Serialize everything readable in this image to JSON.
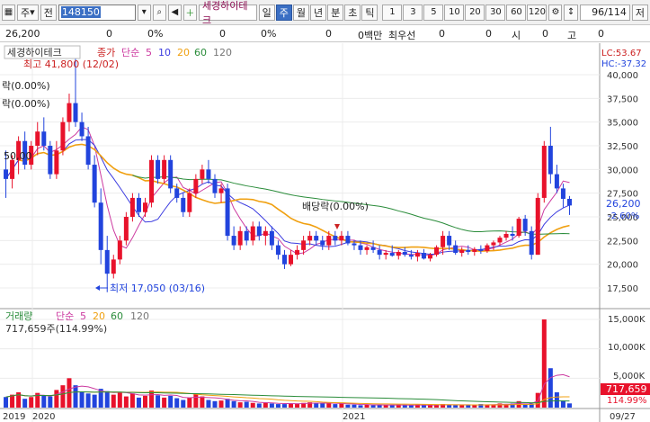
{
  "toolbar": {
    "market_label": "주",
    "market_tag": "전",
    "code": "148150",
    "stock_name": "세경하이테크",
    "period_buttons": [
      "일",
      "주",
      "월",
      "년",
      "분",
      "초",
      "틱"
    ],
    "active_period": "주",
    "interval_buttons": [
      "1",
      "3",
      "5",
      "10",
      "20",
      "30",
      "60",
      "120"
    ],
    "count": "96",
    "count_total": "/114",
    "right_label": "저"
  },
  "info_bar": {
    "price": "26,200",
    "v1": "0",
    "v2": "0%",
    "v3": "0",
    "v4": "0%",
    "v5": "0",
    "v6": "0백만",
    "market_label": "최우선",
    "v7": "0",
    "v8": "0",
    "open_label": "시",
    "v9": "0",
    "high_label": "고",
    "v10": "0"
  },
  "price_legend": {
    "name": "세경하이테크",
    "close": "종가",
    "method": "단순",
    "ma": [
      "5",
      "10",
      "20",
      "60",
      "120"
    ]
  },
  "vol_legend": {
    "name": "거래량",
    "method": "단순",
    "ma": [
      "5",
      "20",
      "60",
      "120"
    ],
    "value": "717,659주(114.99%)"
  },
  "annotations": {
    "high": "최고 41,800 (12/02)",
    "low": "최저 17,050 (03/16)",
    "div1": "배당락(0.00%)",
    "div2": "락(0.00%)",
    "div3": "락(0.00%)",
    "level": "50,00"
  },
  "right_axis": {
    "lc": "LC:53.67",
    "hc": "HC:-37.32",
    "price_ticks": [
      "40,000",
      "37,500",
      "35,000",
      "32,500",
      "30,000",
      "27,500",
      "25,000",
      "22,500",
      "20,000",
      "17,500"
    ],
    "current_price": "26,200",
    "current_pct": "-2.60%",
    "vol_ticks": [
      "15,000K",
      "10,000K",
      "5,000K"
    ],
    "current_vol": "717,659",
    "current_vol_pct": "114.99%"
  },
  "x_labels": [
    "2019",
    "2020",
    "2021",
    "09/27"
  ],
  "colors": {
    "up": "#e8122b",
    "down": "#2244dd",
    "ma5": "#cc3aa0",
    "ma10": "#3b3be0",
    "ma20": "#f0a010",
    "ma60": "#2a8c3a",
    "ma120": "#7a7a7a"
  },
  "chart_data": {
    "type": "candlestick",
    "panels": [
      "price",
      "volume"
    ],
    "price_ylim": [
      15000,
      42000
    ],
    "volume_ylim": [
      0,
      16000000
    ],
    "x_start": "2019",
    "x_end": "09/27",
    "candles": [
      [
        30000,
        32000,
        27000,
        29000
      ],
      [
        29000,
        31500,
        28000,
        31000
      ],
      [
        31000,
        33500,
        29500,
        33000
      ],
      [
        33000,
        34000,
        30000,
        30500
      ],
      [
        30500,
        33000,
        30000,
        32500
      ],
      [
        32500,
        35000,
        31500,
        34000
      ],
      [
        34000,
        35500,
        32000,
        32500
      ],
      [
        32500,
        33000,
        29000,
        29500
      ],
      [
        29500,
        33000,
        29000,
        32000
      ],
      [
        32000,
        35500,
        31500,
        35000
      ],
      [
        35000,
        38000,
        34000,
        37000
      ],
      [
        37000,
        41800,
        34500,
        35000
      ],
      [
        35000,
        36000,
        33000,
        33500
      ],
      [
        33500,
        34500,
        30000,
        30500
      ],
      [
        30500,
        31500,
        26000,
        26500
      ],
      [
        26500,
        28000,
        20000,
        21500
      ],
      [
        21500,
        23000,
        17050,
        19000
      ],
      [
        19000,
        21000,
        18500,
        20500
      ],
      [
        20500,
        23000,
        20000,
        22500
      ],
      [
        22500,
        25500,
        22000,
        25000
      ],
      [
        25000,
        27500,
        24500,
        27000
      ],
      [
        27000,
        27500,
        25000,
        25500
      ],
      [
        25500,
        27000,
        25000,
        26500
      ],
      [
        26500,
        31500,
        26000,
        31000
      ],
      [
        31000,
        31500,
        28500,
        29000
      ],
      [
        29000,
        31500,
        28500,
        31000
      ],
      [
        31000,
        31500,
        27500,
        28000
      ],
      [
        28000,
        28500,
        26500,
        27000
      ],
      [
        27000,
        27500,
        25000,
        25500
      ],
      [
        25500,
        28000,
        25000,
        27500
      ],
      [
        27500,
        29500,
        27000,
        29000
      ],
      [
        29000,
        30500,
        28500,
        30000
      ],
      [
        30000,
        31000,
        28500,
        29000
      ],
      [
        29000,
        29500,
        27000,
        27500
      ],
      [
        27500,
        28500,
        26500,
        28000
      ],
      [
        28000,
        28500,
        22500,
        23000
      ],
      [
        23000,
        24000,
        21500,
        22000
      ],
      [
        22000,
        24000,
        21500,
        23500
      ],
      [
        23500,
        24000,
        22000,
        22500
      ],
      [
        22500,
        24500,
        22000,
        24000
      ],
      [
        24000,
        24500,
        22500,
        23000
      ],
      [
        23000,
        24000,
        22000,
        23500
      ],
      [
        23500,
        24000,
        21500,
        22000
      ],
      [
        22000,
        22500,
        20500,
        21000
      ],
      [
        21000,
        21500,
        19500,
        20000
      ],
      [
        20000,
        21500,
        19800,
        21000
      ],
      [
        21000,
        22000,
        20500,
        21500
      ],
      [
        21500,
        23000,
        21000,
        22500
      ],
      [
        22500,
        23500,
        22000,
        23000
      ],
      [
        23000,
        23500,
        22000,
        22500
      ],
      [
        22500,
        23000,
        21500,
        22000
      ],
      [
        22000,
        23500,
        21500,
        23000
      ],
      [
        23000,
        23500,
        22000,
        22500
      ],
      [
        22500,
        23500,
        22000,
        23000
      ],
      [
        23000,
        23500,
        22000,
        22200
      ],
      [
        22200,
        22500,
        21500,
        22000
      ],
      [
        22000,
        22500,
        21000,
        21500
      ],
      [
        21500,
        22000,
        21000,
        21800
      ],
      [
        21800,
        22500,
        21200,
        21500
      ],
      [
        21500,
        22000,
        20500,
        21000
      ],
      [
        21000,
        21500,
        20500,
        21200
      ],
      [
        21200,
        22000,
        20800,
        20900
      ],
      [
        20900,
        21500,
        20500,
        21300
      ],
      [
        21300,
        21800,
        20800,
        21000
      ],
      [
        21000,
        21500,
        20500,
        20800
      ],
      [
        20800,
        21500,
        20300,
        21200
      ],
      [
        21200,
        21600,
        20500,
        20600
      ],
      [
        20600,
        21200,
        20300,
        21000
      ],
      [
        21000,
        22000,
        20800,
        21800
      ],
      [
        21800,
        23500,
        21000,
        23000
      ],
      [
        23000,
        23500,
        21500,
        22000
      ],
      [
        22000,
        22500,
        21000,
        21200
      ],
      [
        21200,
        21800,
        20800,
        21500
      ],
      [
        21500,
        22000,
        21000,
        21300
      ],
      [
        21300,
        21800,
        20900,
        21600
      ],
      [
        21600,
        22000,
        21100,
        21400
      ],
      [
        21400,
        22200,
        21200,
        22000
      ],
      [
        22000,
        22500,
        21500,
        22300
      ],
      [
        22300,
        23000,
        22000,
        22800
      ],
      [
        22800,
        23500,
        22500,
        23200
      ],
      [
        23200,
        24000,
        22500,
        23000
      ],
      [
        23000,
        25000,
        22800,
        24800
      ],
      [
        24800,
        25200,
        23000,
        23500
      ],
      [
        23500,
        24000,
        20500,
        21000
      ],
      [
        21000,
        27500,
        21000,
        27000
      ],
      [
        27000,
        33000,
        26500,
        32500
      ],
      [
        32500,
        34500,
        28500,
        29500
      ],
      [
        29500,
        30500,
        27500,
        28000
      ],
      [
        28000,
        28500,
        26000,
        26900
      ],
      [
        26900,
        27200,
        25200,
        26200
      ]
    ],
    "volume_k": [
      1800,
      2200,
      2600,
      1500,
      1800,
      2500,
      2100,
      1900,
      3000,
      3800,
      5000,
      3800,
      2700,
      2400,
      2200,
      3200,
      2800,
      2200,
      2600,
      1900,
      2400,
      1700,
      2000,
      2900,
      2100,
      1700,
      2000,
      1600,
      1300,
      1700,
      2300,
      1900,
      1300,
      1100,
      1200,
      1500,
      1100,
      900,
      1000,
      800,
      700,
      800,
      700,
      600,
      600,
      700,
      700,
      800,
      900,
      700,
      700,
      800,
      600,
      700,
      500,
      500,
      400,
      500,
      400,
      500,
      400,
      400,
      500,
      400,
      400,
      500,
      400,
      400,
      500,
      600,
      500,
      400,
      400,
      500,
      400,
      600,
      500,
      500,
      700,
      600,
      700,
      1100,
      600,
      700,
      2500,
      15000,
      6700,
      2600,
      1200,
      718
    ]
  }
}
